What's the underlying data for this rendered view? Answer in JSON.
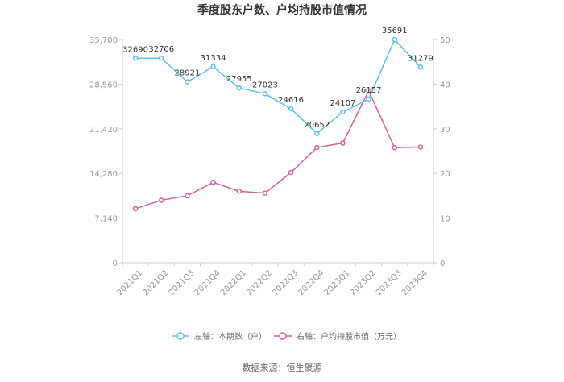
{
  "chart_data": {
    "type": "line",
    "title": "季度股东户数、户均持股市值情况",
    "categories": [
      "2021Q1",
      "2021Q2",
      "2021Q3",
      "2021Q4",
      "2022Q1",
      "2022Q2",
      "2022Q3",
      "2022Q4",
      "2023Q1",
      "2023Q2",
      "2023Q3",
      "2023Q4"
    ],
    "left_axis": {
      "ticks": [
        "0",
        "7,140",
        "14,280",
        "21,420",
        "28,560",
        "35,700"
      ],
      "min": 0,
      "max": 35700
    },
    "right_axis": {
      "ticks": [
        "0",
        "10",
        "20",
        "30",
        "40",
        "50"
      ],
      "min": 0,
      "max": 50
    },
    "series": [
      {
        "name": "左轴：本期数（户）",
        "axis": "left",
        "color": "#5bc0eb",
        "values": [
          32690,
          32706,
          28921,
          31334,
          27955,
          27023,
          24616,
          20652,
          24107,
          26157,
          35691,
          31279
        ],
        "labels": [
          "32690",
          "32706",
          "28921",
          "31334",
          "27955",
          "27023",
          "24616",
          "20652",
          "24107",
          "26157",
          "35691",
          "31279"
        ]
      },
      {
        "name": "右轴：户均持股市值（万元）",
        "axis": "right",
        "color": "#d4609e",
        "values": [
          12.1,
          14.0,
          15.0,
          18.0,
          16.0,
          15.6,
          20.2,
          25.8,
          26.8,
          38.5,
          25.8,
          25.9
        ]
      }
    ],
    "legend_position": "bottom",
    "grid": false
  },
  "source_text": "数据来源：恒生聚源"
}
